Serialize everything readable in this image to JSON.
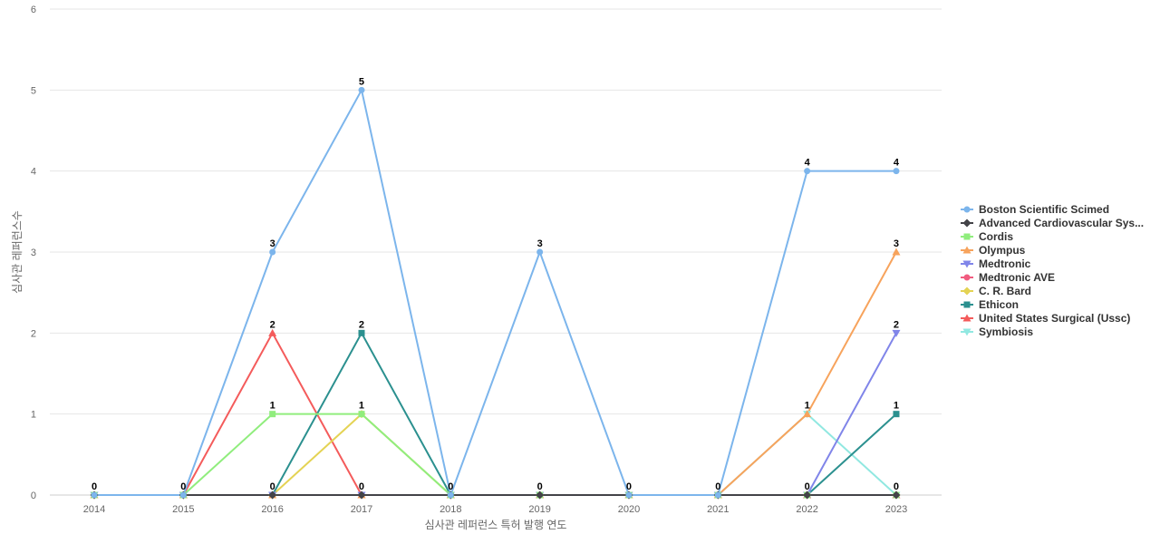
{
  "chart_data": {
    "type": "line",
    "title": "",
    "xlabel": "심사관 레퍼런스 특허 발행 연도",
    "ylabel": "심사관 레퍼런스수",
    "categories": [
      "2014",
      "2015",
      "2016",
      "2017",
      "2018",
      "2019",
      "2020",
      "2021",
      "2022",
      "2023"
    ],
    "ylim": [
      0,
      6
    ],
    "yticks": [
      0,
      1,
      2,
      3,
      4,
      5,
      6
    ],
    "grid": true,
    "legend_position": "right",
    "series": [
      {
        "name": "Boston Scientific Scimed",
        "color": "#7cb5ec",
        "marker": "circle",
        "values": [
          0,
          0,
          3,
          5,
          0,
          3,
          0,
          0,
          4,
          4
        ]
      },
      {
        "name": "Advanced Cardiovascular Sys...",
        "color": "#434348",
        "marker": "diamond",
        "values": [
          0,
          0,
          0,
          0,
          0,
          0,
          0,
          0,
          0,
          0
        ]
      },
      {
        "name": "Cordis",
        "color": "#90ed7d",
        "marker": "square",
        "values": [
          0,
          0,
          1,
          1,
          0,
          0,
          0,
          0,
          0,
          0
        ]
      },
      {
        "name": "Olympus",
        "color": "#f7a35c",
        "marker": "triangle",
        "values": [
          0,
          0,
          0,
          0,
          0,
          0,
          0,
          0,
          1,
          3
        ]
      },
      {
        "name": "Medtronic",
        "color": "#8085e9",
        "marker": "triangle-down",
        "values": [
          0,
          0,
          0,
          0,
          0,
          0,
          0,
          0,
          0,
          2
        ]
      },
      {
        "name": "Medtronic AVE",
        "color": "#f15c80",
        "marker": "circle",
        "values": [
          0,
          0,
          0,
          0,
          0,
          0,
          0,
          0,
          0,
          0
        ]
      },
      {
        "name": "C. R. Bard",
        "color": "#e4d354",
        "marker": "diamond",
        "values": [
          0,
          0,
          0,
          1,
          0,
          0,
          0,
          0,
          0,
          0
        ]
      },
      {
        "name": "Ethicon",
        "color": "#2b908f",
        "marker": "square",
        "values": [
          0,
          0,
          0,
          2,
          0,
          0,
          0,
          0,
          0,
          1
        ]
      },
      {
        "name": "United States Surgical (Ussc)",
        "color": "#f45b5b",
        "marker": "triangle",
        "values": [
          0,
          0,
          2,
          0,
          0,
          0,
          0,
          0,
          0,
          0
        ]
      },
      {
        "name": "Symbiosis",
        "color": "#91e8e1",
        "marker": "triangle-down",
        "values": [
          0,
          0,
          0,
          0,
          0,
          0,
          0,
          0,
          1,
          0
        ]
      }
    ],
    "data_labels": [
      {
        "category": "2014",
        "value": 0
      },
      {
        "category": "2015",
        "value": 0
      },
      {
        "category": "2016",
        "value": 3
      },
      {
        "category": "2016",
        "value": 2
      },
      {
        "category": "2016",
        "value": 1
      },
      {
        "category": "2016",
        "value": 0
      },
      {
        "category": "2017",
        "value": 5
      },
      {
        "category": "2017",
        "value": 2
      },
      {
        "category": "2017",
        "value": 1
      },
      {
        "category": "2017",
        "value": 0
      },
      {
        "category": "2018",
        "value": 0
      },
      {
        "category": "2019",
        "value": 3
      },
      {
        "category": "2019",
        "value": 0
      },
      {
        "category": "2020",
        "value": 0
      },
      {
        "category": "2021",
        "value": 0
      },
      {
        "category": "2022",
        "value": 4
      },
      {
        "category": "2022",
        "value": 1
      },
      {
        "category": "2022",
        "value": 0
      },
      {
        "category": "2023",
        "value": 4
      },
      {
        "category": "2023",
        "value": 3
      },
      {
        "category": "2023",
        "value": 2
      },
      {
        "category": "2023",
        "value": 1
      },
      {
        "category": "2023",
        "value": 0
      }
    ]
  }
}
